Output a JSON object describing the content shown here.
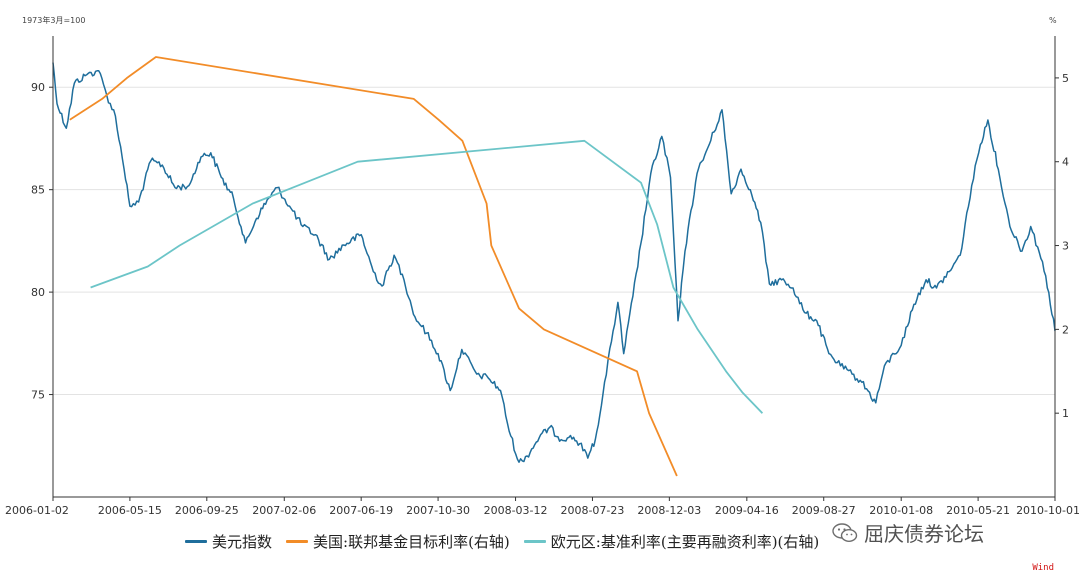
{
  "chart_data": {
    "type": "line",
    "left_axis_unit": "1973年3月=100",
    "right_axis_unit": "%",
    "ylim_left": [
      70,
      92.5
    ],
    "ylim_right": [
      0,
      5.5
    ],
    "left_ticks": [
      75,
      80,
      85,
      90
    ],
    "right_ticks": [
      1,
      2,
      3,
      4,
      5
    ],
    "x_start": "2006-01-02",
    "x_end": "2010-10-01",
    "x_ticks": [
      "2006-01-02",
      "2006-05-15",
      "2006-09-25",
      "2007-02-06",
      "2007-06-19",
      "2007-10-30",
      "2008-03-12",
      "2008-07-23",
      "2008-12-03",
      "2009-04-16",
      "2009-08-27",
      "2010-01-08",
      "2010-05-21",
      "2010-10-01"
    ],
    "series": [
      {
        "name": "美元指数",
        "axis": "left",
        "color": "#1f6e9c",
        "points": [
          [
            "2006-01-02",
            91.2
          ],
          [
            "2006-01-09",
            89.2
          ],
          [
            "2006-01-25",
            88.0
          ],
          [
            "2006-02-08",
            90.2
          ],
          [
            "2006-03-01",
            90.6
          ],
          [
            "2006-03-22",
            90.8
          ],
          [
            "2006-04-05",
            89.6
          ],
          [
            "2006-04-20",
            88.6
          ],
          [
            "2006-05-05",
            86.0
          ],
          [
            "2006-05-15",
            84.2
          ],
          [
            "2006-05-30",
            84.4
          ],
          [
            "2006-06-20",
            86.4
          ],
          [
            "2006-07-10",
            86.2
          ],
          [
            "2006-08-01",
            85.1
          ],
          [
            "2006-08-25",
            85.2
          ],
          [
            "2006-09-15",
            86.6
          ],
          [
            "2006-10-02",
            86.8
          ],
          [
            "2006-10-20",
            85.6
          ],
          [
            "2006-11-10",
            84.6
          ],
          [
            "2006-12-01",
            82.4
          ],
          [
            "2006-12-20",
            83.6
          ],
          [
            "2007-01-10",
            84.6
          ],
          [
            "2007-01-25",
            85.1
          ],
          [
            "2007-02-15",
            84.2
          ],
          [
            "2007-03-10",
            83.2
          ],
          [
            "2007-04-01",
            82.8
          ],
          [
            "2007-04-25",
            81.6
          ],
          [
            "2007-05-20",
            82.3
          ],
          [
            "2007-06-19",
            82.8
          ],
          [
            "2007-07-10",
            81.0
          ],
          [
            "2007-07-25",
            80.3
          ],
          [
            "2007-08-15",
            81.8
          ],
          [
            "2007-09-01",
            80.6
          ],
          [
            "2007-09-20",
            78.8
          ],
          [
            "2007-10-10",
            78.0
          ],
          [
            "2007-10-30",
            77.0
          ],
          [
            "2007-11-20",
            75.2
          ],
          [
            "2007-12-10",
            77.2
          ],
          [
            "2008-01-05",
            76.0
          ],
          [
            "2008-01-25",
            75.8
          ],
          [
            "2008-02-15",
            75.2
          ],
          [
            "2008-03-01",
            73.2
          ],
          [
            "2008-03-18",
            71.7
          ],
          [
            "2008-04-01",
            72.0
          ],
          [
            "2008-04-22",
            72.9
          ],
          [
            "2008-05-10",
            73.4
          ],
          [
            "2008-05-30",
            72.8
          ],
          [
            "2008-06-15",
            73.0
          ],
          [
            "2008-07-01",
            72.6
          ],
          [
            "2008-07-15",
            71.9
          ],
          [
            "2008-07-28",
            72.8
          ],
          [
            "2008-08-10",
            75.0
          ],
          [
            "2008-08-25",
            77.6
          ],
          [
            "2008-09-05",
            79.5
          ],
          [
            "2008-09-15",
            77.0
          ],
          [
            "2008-10-01",
            79.8
          ],
          [
            "2008-10-15",
            82.4
          ],
          [
            "2008-11-01",
            85.8
          ],
          [
            "2008-11-20",
            87.6
          ],
          [
            "2008-12-05",
            85.6
          ],
          [
            "2008-12-18",
            78.6
          ],
          [
            "2008-12-30",
            82.0
          ],
          [
            "2009-01-20",
            85.8
          ],
          [
            "2009-02-10",
            87.2
          ],
          [
            "2009-03-04",
            88.9
          ],
          [
            "2009-03-20",
            84.8
          ],
          [
            "2009-04-06",
            86.0
          ],
          [
            "2009-04-22",
            85.0
          ],
          [
            "2009-05-10",
            83.4
          ],
          [
            "2009-05-25",
            80.4
          ],
          [
            "2009-06-15",
            80.6
          ],
          [
            "2009-07-05",
            80.2
          ],
          [
            "2009-07-25",
            79.0
          ],
          [
            "2009-08-15",
            78.6
          ],
          [
            "2009-09-05",
            77.0
          ],
          [
            "2009-09-25",
            76.4
          ],
          [
            "2009-10-15",
            76.0
          ],
          [
            "2009-11-01",
            75.6
          ],
          [
            "2009-11-25",
            74.6
          ],
          [
            "2009-12-10",
            76.4
          ],
          [
            "2010-01-08",
            77.4
          ],
          [
            "2010-01-30",
            79.4
          ],
          [
            "2010-02-20",
            80.6
          ],
          [
            "2010-03-10",
            80.2
          ],
          [
            "2010-04-01",
            81.0
          ],
          [
            "2010-04-20",
            81.8
          ],
          [
            "2010-05-10",
            85.2
          ],
          [
            "2010-05-25",
            87.2
          ],
          [
            "2010-06-07",
            88.4
          ],
          [
            "2010-06-25",
            86.0
          ],
          [
            "2010-07-15",
            83.2
          ],
          [
            "2010-08-05",
            82.0
          ],
          [
            "2010-08-20",
            83.2
          ],
          [
            "2010-09-01",
            82.2
          ],
          [
            "2010-09-15",
            80.8
          ],
          [
            "2010-10-01",
            78.1
          ]
        ]
      },
      {
        "name": "美国:联邦基金目标利率(右轴)",
        "axis": "right",
        "color": "#f28c28",
        "points": [
          [
            "2006-01-31",
            4.5
          ],
          [
            "2006-03-28",
            4.75
          ],
          [
            "2006-05-10",
            5.0
          ],
          [
            "2006-06-29",
            5.25
          ],
          [
            "2007-09-18",
            4.75
          ],
          [
            "2007-10-31",
            4.5
          ],
          [
            "2007-12-11",
            4.25
          ],
          [
            "2008-01-22",
            3.5
          ],
          [
            "2008-01-30",
            3.0
          ],
          [
            "2008-03-18",
            2.25
          ],
          [
            "2008-04-30",
            2.0
          ],
          [
            "2008-10-08",
            1.5
          ],
          [
            "2008-10-29",
            1.0
          ],
          [
            "2008-12-16",
            0.25
          ]
        ]
      },
      {
        "name": "欧元区:基准利率(主要再融资利率)(右轴)",
        "axis": "right",
        "color": "#6cc5c8",
        "points": [
          [
            "2006-03-08",
            2.5
          ],
          [
            "2006-06-15",
            2.75
          ],
          [
            "2006-08-09",
            3.0
          ],
          [
            "2006-10-11",
            3.25
          ],
          [
            "2006-12-13",
            3.5
          ],
          [
            "2007-03-14",
            3.75
          ],
          [
            "2007-06-13",
            4.0
          ],
          [
            "2008-07-09",
            4.25
          ],
          [
            "2008-10-15",
            3.75
          ],
          [
            "2008-11-12",
            3.25
          ],
          [
            "2008-12-10",
            2.5
          ],
          [
            "2009-01-21",
            2.0
          ],
          [
            "2009-03-11",
            1.5
          ],
          [
            "2009-04-08",
            1.25
          ],
          [
            "2009-05-13",
            1.0
          ]
        ]
      }
    ]
  },
  "legend": {
    "items": [
      {
        "label": "美元指数",
        "color": "#1f6e9c"
      },
      {
        "label": "美国:联邦基金目标利率(右轴)",
        "color": "#f28c28"
      },
      {
        "label": "欧元区:基准利率(主要再融资利率)(右轴)",
        "color": "#6cc5c8"
      }
    ]
  },
  "watermark": {
    "text": "屈庆债券论坛",
    "icon": "wechat-icon"
  },
  "source": {
    "text": "Wind"
  }
}
